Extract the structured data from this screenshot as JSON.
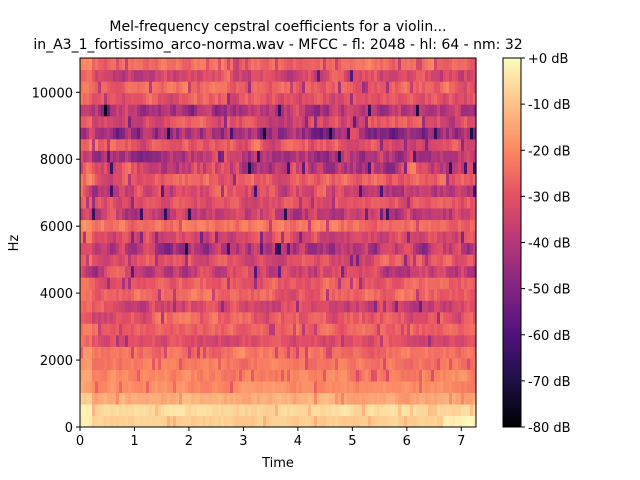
{
  "chart_data": {
    "type": "heatmap",
    "title_line1": "Mel-frequency cepstral coefficients for a violin...",
    "title_line2": "in_A3_1_fortissimo_arco-norma.wav - MFCC - fl: 2048 - hl: 64 - nm: 32",
    "xlabel": "Time",
    "ylabel": "Hz",
    "xlim": [
      0,
      7.27
    ],
    "ylim": [
      0,
      11025
    ],
    "x_ticks": [
      {
        "value": 0,
        "label": "0"
      },
      {
        "value": 1,
        "label": "1"
      },
      {
        "value": 2,
        "label": "2"
      },
      {
        "value": 3,
        "label": "3"
      },
      {
        "value": 4,
        "label": "4"
      },
      {
        "value": 5,
        "label": "5"
      },
      {
        "value": 6,
        "label": "6"
      },
      {
        "value": 7,
        "label": "7"
      }
    ],
    "y_ticks": [
      {
        "value": 0,
        "label": "0"
      },
      {
        "value": 2000,
        "label": "2000"
      },
      {
        "value": 4000,
        "label": "4000"
      },
      {
        "value": 6000,
        "label": "6000"
      },
      {
        "value": 8000,
        "label": "8000"
      },
      {
        "value": 10000,
        "label": "10000"
      }
    ],
    "colormap": "magma",
    "colorbar": {
      "range": [
        -80,
        0
      ],
      "ticks": [
        {
          "value": 0,
          "label": "+0 dB"
        },
        {
          "value": -10,
          "label": "-10 dB"
        },
        {
          "value": -20,
          "label": "-20 dB"
        },
        {
          "value": -30,
          "label": "-30 dB"
        },
        {
          "value": -40,
          "label": "-40 dB"
        },
        {
          "value": -50,
          "label": "-50 dB"
        },
        {
          "value": -60,
          "label": "-60 dB"
        },
        {
          "value": -70,
          "label": "-70 dB"
        },
        {
          "value": -80,
          "label": "-80 dB"
        }
      ]
    },
    "n_coefficients": 32,
    "row_base_db": [
      -8,
      -6,
      -14,
      -19,
      -21,
      -23,
      -24,
      -31,
      -27,
      -30,
      -34,
      -26,
      -28,
      -36,
      -30,
      -40,
      -32,
      -24,
      -38,
      -30,
      -34,
      -28,
      -37,
      -40,
      -29,
      -44,
      -33,
      -41,
      -30,
      -27,
      -33,
      -25
    ],
    "row_variation_db": [
      3,
      3,
      4,
      4,
      5,
      5,
      6,
      7,
      6,
      10,
      10,
      8,
      8,
      12,
      9,
      14,
      10,
      7,
      14,
      8,
      13,
      9,
      15,
      15,
      10,
      17,
      11,
      15,
      9,
      8,
      12,
      6
    ]
  }
}
